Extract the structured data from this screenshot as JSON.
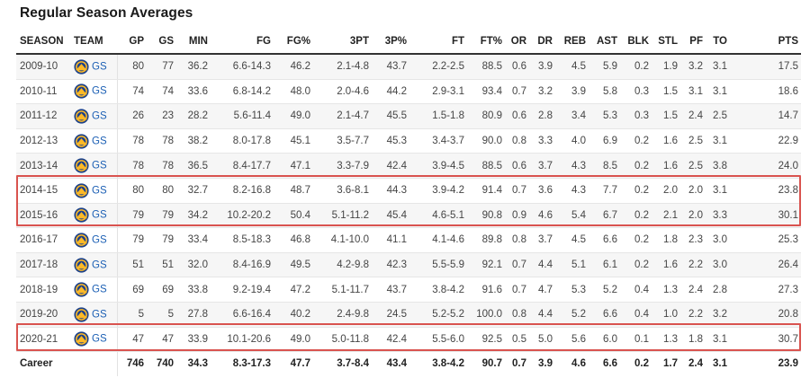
{
  "title": "Regular Season Averages",
  "columns": [
    "SEASON",
    "TEAM",
    "GP",
    "GS",
    "MIN",
    "FG",
    "FG%",
    "3PT",
    "3P%",
    "FT",
    "FT%",
    "OR",
    "DR",
    "REB",
    "AST",
    "BLK",
    "STL",
    "PF",
    "TO",
    "PTS"
  ],
  "team_logo_icon": "warriors-logo-icon",
  "highlight_color": "#d9534f",
  "rows": [
    {
      "season": "2009-10",
      "team": "GS",
      "stats": [
        "80",
        "77",
        "36.2",
        "6.6-14.3",
        "46.2",
        "2.1-4.8",
        "43.7",
        "2.2-2.5",
        "88.5",
        "0.6",
        "3.9",
        "4.5",
        "5.9",
        "0.2",
        "1.9",
        "3.2",
        "3.1",
        "17.5"
      ]
    },
    {
      "season": "2010-11",
      "team": "GS",
      "stats": [
        "74",
        "74",
        "33.6",
        "6.8-14.2",
        "48.0",
        "2.0-4.6",
        "44.2",
        "2.9-3.1",
        "93.4",
        "0.7",
        "3.2",
        "3.9",
        "5.8",
        "0.3",
        "1.5",
        "3.1",
        "3.1",
        "18.6"
      ]
    },
    {
      "season": "2011-12",
      "team": "GS",
      "stats": [
        "26",
        "23",
        "28.2",
        "5.6-11.4",
        "49.0",
        "2.1-4.7",
        "45.5",
        "1.5-1.8",
        "80.9",
        "0.6",
        "2.8",
        "3.4",
        "5.3",
        "0.3",
        "1.5",
        "2.4",
        "2.5",
        "14.7"
      ]
    },
    {
      "season": "2012-13",
      "team": "GS",
      "stats": [
        "78",
        "78",
        "38.2",
        "8.0-17.8",
        "45.1",
        "3.5-7.7",
        "45.3",
        "3.4-3.7",
        "90.0",
        "0.8",
        "3.3",
        "4.0",
        "6.9",
        "0.2",
        "1.6",
        "2.5",
        "3.1",
        "22.9"
      ]
    },
    {
      "season": "2013-14",
      "team": "GS",
      "stats": [
        "78",
        "78",
        "36.5",
        "8.4-17.7",
        "47.1",
        "3.3-7.9",
        "42.4",
        "3.9-4.5",
        "88.5",
        "0.6",
        "3.7",
        "4.3",
        "8.5",
        "0.2",
        "1.6",
        "2.5",
        "3.8",
        "24.0"
      ]
    },
    {
      "season": "2014-15",
      "team": "GS",
      "stats": [
        "80",
        "80",
        "32.7",
        "8.2-16.8",
        "48.7",
        "3.6-8.1",
        "44.3",
        "3.9-4.2",
        "91.4",
        "0.7",
        "3.6",
        "4.3",
        "7.7",
        "0.2",
        "2.0",
        "2.0",
        "3.1",
        "23.8"
      ]
    },
    {
      "season": "2015-16",
      "team": "GS",
      "stats": [
        "79",
        "79",
        "34.2",
        "10.2-20.2",
        "50.4",
        "5.1-11.2",
        "45.4",
        "4.6-5.1",
        "90.8",
        "0.9",
        "4.6",
        "5.4",
        "6.7",
        "0.2",
        "2.1",
        "2.0",
        "3.3",
        "30.1"
      ]
    },
    {
      "season": "2016-17",
      "team": "GS",
      "stats": [
        "79",
        "79",
        "33.4",
        "8.5-18.3",
        "46.8",
        "4.1-10.0",
        "41.1",
        "4.1-4.6",
        "89.8",
        "0.8",
        "3.7",
        "4.5",
        "6.6",
        "0.2",
        "1.8",
        "2.3",
        "3.0",
        "25.3"
      ]
    },
    {
      "season": "2017-18",
      "team": "GS",
      "stats": [
        "51",
        "51",
        "32.0",
        "8.4-16.9",
        "49.5",
        "4.2-9.8",
        "42.3",
        "5.5-5.9",
        "92.1",
        "0.7",
        "4.4",
        "5.1",
        "6.1",
        "0.2",
        "1.6",
        "2.2",
        "3.0",
        "26.4"
      ]
    },
    {
      "season": "2018-19",
      "team": "GS",
      "stats": [
        "69",
        "69",
        "33.8",
        "9.2-19.4",
        "47.2",
        "5.1-11.7",
        "43.7",
        "3.8-4.2",
        "91.6",
        "0.7",
        "4.7",
        "5.3",
        "5.2",
        "0.4",
        "1.3",
        "2.4",
        "2.8",
        "27.3"
      ]
    },
    {
      "season": "2019-20",
      "team": "GS",
      "stats": [
        "5",
        "5",
        "27.8",
        "6.6-16.4",
        "40.2",
        "2.4-9.8",
        "24.5",
        "5.2-5.2",
        "100.0",
        "0.8",
        "4.4",
        "5.2",
        "6.6",
        "0.4",
        "1.0",
        "2.2",
        "3.2",
        "20.8"
      ]
    },
    {
      "season": "2020-21",
      "team": "GS",
      "stats": [
        "47",
        "47",
        "33.9",
        "10.1-20.6",
        "49.0",
        "5.0-11.8",
        "42.4",
        "5.5-6.0",
        "92.5",
        "0.5",
        "5.0",
        "5.6",
        "6.0",
        "0.1",
        "1.3",
        "1.8",
        "3.1",
        "30.7"
      ]
    }
  ],
  "career": {
    "label": "Career",
    "stats": [
      "746",
      "740",
      "34.3",
      "8.3-17.3",
      "47.7",
      "3.7-8.4",
      "43.4",
      "3.8-4.2",
      "90.7",
      "0.7",
      "3.9",
      "4.6",
      "6.6",
      "0.2",
      "1.7",
      "2.4",
      "3.1",
      "23.9"
    ]
  }
}
